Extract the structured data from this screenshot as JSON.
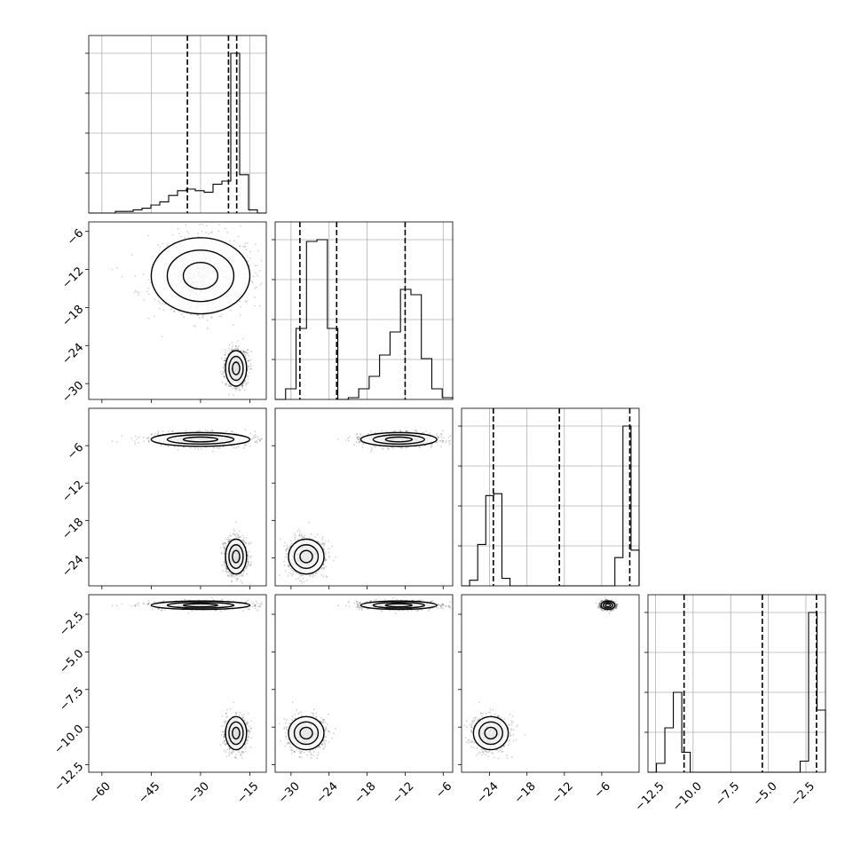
{
  "chart_data": {
    "type": "corner",
    "grid": true,
    "parameters": [
      {
        "range": [
          -64,
          -10
        ],
        "ticks": [
          -60,
          -45,
          -30,
          -15
        ],
        "tick_labels": [
          "−60",
          "−45",
          "−30",
          "−15"
        ],
        "hist_counts": [
          0,
          0,
          0,
          1,
          1,
          2,
          3,
          5,
          7,
          11,
          14,
          15,
          14,
          13,
          18,
          20,
          100,
          24,
          2,
          0
        ],
        "quantiles": [
          -34,
          -21.5,
          -19
        ]
      },
      {
        "range": [
          -32.5,
          -4.5
        ],
        "ticks": [
          -30,
          -24,
          -18,
          -12,
          -6
        ],
        "tick_labels": [
          "−30",
          "−24",
          "−18",
          "−12",
          "−6"
        ],
        "hist_counts": [
          0,
          6,
          40,
          89,
          90,
          40,
          0,
          1,
          6,
          13,
          25,
          38,
          62,
          59,
          23,
          6,
          1
        ],
        "quantiles": [
          -28.6,
          -22.8,
          -12
        ]
      },
      {
        "range": [
          -28.5,
          0
        ],
        "ticks": [
          -24,
          -18,
          -12,
          -6
        ],
        "tick_labels": [
          "−24",
          "−18",
          "−12",
          "−6"
        ],
        "hist_counts": [
          0,
          3,
          22,
          48,
          49,
          4,
          0,
          0,
          0,
          0,
          0,
          0,
          0,
          0,
          0,
          0,
          0,
          0,
          0,
          15,
          85,
          19
        ],
        "quantiles": [
          -23.4,
          -12.8,
          -1.5
        ]
      },
      {
        "range": [
          -13,
          -1.2
        ],
        "ticks": [
          -12.5,
          -10,
          -7.5,
          -5,
          -2.5
        ],
        "tick_labels": [
          "−12.5",
          "−10.0",
          "−7.5",
          "−5.0",
          "−2.5"
        ],
        "hist_counts": [
          0,
          4,
          20,
          36,
          9,
          0,
          0,
          0,
          0,
          0,
          0,
          0,
          0,
          0,
          0,
          0,
          0,
          0,
          5,
          72,
          28
        ],
        "quantiles": [
          -10.6,
          -5.4,
          -1.8
        ]
      }
    ],
    "modes": [
      {
        "weight": 0.45,
        "mean": [
          -30,
          -13,
          -5,
          -1.9
        ],
        "sd": [
          7.5,
          3,
          0.55,
          0.14
        ]
      },
      {
        "weight": 0.55,
        "mean": [
          -19.2,
          -27.6,
          -23.8,
          -10.4
        ],
        "sd": [
          1.6,
          1.4,
          1.4,
          0.55
        ]
      }
    ]
  },
  "colors": {
    "ink": "#000000",
    "grid": "#b0b0b0",
    "background": "#ffffff"
  }
}
